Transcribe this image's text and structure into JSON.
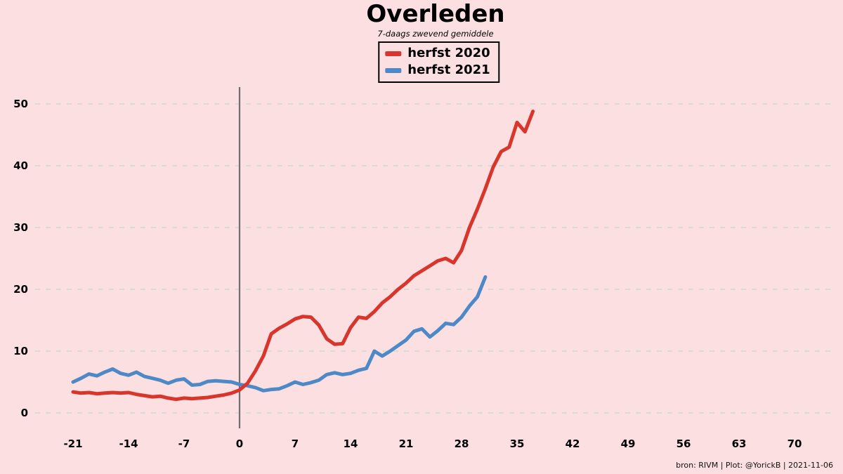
{
  "title": "Overleden",
  "subtitle": "7-daags zwevend gemiddele",
  "footer": "bron: RIVM  | Plot: @YorickB |  2021-11-06",
  "colors": {
    "background": "#fcdfe1",
    "red": "#d8352c",
    "blue": "#4d89c6",
    "grid": "#ccd9d3",
    "zero_line": "#6e6e6e",
    "text": "#000000"
  },
  "legend": {
    "items": [
      {
        "label": "herfst 2020",
        "color": "#d8352c"
      },
      {
        "label": "herfst 2021",
        "color": "#4d89c6"
      }
    ]
  },
  "chart_data": {
    "type": "line",
    "title": "Overleden",
    "subtitle": "7-daags zwevend gemiddele",
    "xlabel": "",
    "ylabel": "",
    "x_ticks": [
      -21,
      -14,
      -7,
      0,
      7,
      14,
      21,
      28,
      35,
      42,
      49,
      56,
      63,
      70
    ],
    "y_ticks": [
      0,
      10,
      20,
      30,
      40,
      50
    ],
    "xlim": [
      -26,
      75
    ],
    "ylim": [
      -2.5,
      52.5
    ],
    "grid": "horizontal-dashed",
    "legend_position": "top-center",
    "vline_x": 0,
    "series": [
      {
        "name": "herfst 2020",
        "color": "#d8352c",
        "x": [
          -21,
          -20,
          -19,
          -18,
          -17,
          -16,
          -15,
          -14,
          -13,
          -12,
          -11,
          -10,
          -9,
          -8,
          -7,
          -6,
          -5,
          -4,
          -3,
          -2,
          -1,
          0,
          1,
          2,
          3,
          4,
          5,
          6,
          7,
          8,
          9,
          10,
          11,
          12,
          13,
          14,
          15,
          16,
          17,
          18,
          19,
          20,
          21,
          22,
          23,
          24,
          25,
          26,
          27,
          28,
          29,
          30,
          31,
          32,
          33,
          34,
          35,
          36,
          37
        ],
        "y": [
          3.4,
          3.2,
          3.3,
          3.1,
          3.2,
          3.3,
          3.2,
          3.3,
          3.0,
          2.8,
          2.6,
          2.7,
          2.4,
          2.2,
          2.4,
          2.3,
          2.4,
          2.5,
          2.7,
          2.9,
          3.2,
          3.7,
          4.8,
          6.8,
          9.2,
          12.8,
          13.7,
          14.4,
          15.2,
          15.6,
          15.5,
          14.2,
          12.0,
          11.1,
          11.2,
          13.8,
          15.5,
          15.3,
          16.4,
          17.8,
          18.8,
          20.0,
          21.0,
          22.2,
          23.0,
          23.8,
          24.6,
          25.0,
          24.3,
          26.3,
          30.0,
          33.0,
          36.3,
          39.8,
          42.3,
          43.0,
          47.0,
          45.5,
          48.8
        ]
      },
      {
        "name": "herfst 2021",
        "color": "#4d89c6",
        "x": [
          -21,
          -20,
          -19,
          -18,
          -17,
          -16,
          -15,
          -14,
          -13,
          -12,
          -11,
          -10,
          -9,
          -8,
          -7,
          -6,
          -5,
          -4,
          -3,
          -2,
          -1,
          0,
          1,
          2,
          3,
          4,
          5,
          6,
          7,
          8,
          9,
          10,
          11,
          12,
          13,
          14,
          15,
          16,
          17,
          18,
          19,
          20,
          21,
          22,
          23,
          24,
          25,
          26,
          27,
          28,
          29,
          30,
          31
        ],
        "y": [
          5.0,
          5.6,
          6.3,
          6.0,
          6.6,
          7.1,
          6.4,
          6.1,
          6.6,
          5.9,
          5.6,
          5.3,
          4.8,
          5.3,
          5.5,
          4.5,
          4.6,
          5.1,
          5.2,
          5.1,
          5.0,
          4.6,
          4.4,
          4.1,
          3.6,
          3.8,
          3.9,
          4.4,
          5.0,
          4.6,
          4.9,
          5.3,
          6.2,
          6.5,
          6.2,
          6.4,
          6.9,
          7.2,
          10.0,
          9.2,
          10.0,
          10.9,
          11.8,
          13.2,
          13.6,
          12.3,
          13.3,
          14.5,
          14.3,
          15.5,
          17.3,
          18.8,
          22.0
        ]
      }
    ]
  }
}
